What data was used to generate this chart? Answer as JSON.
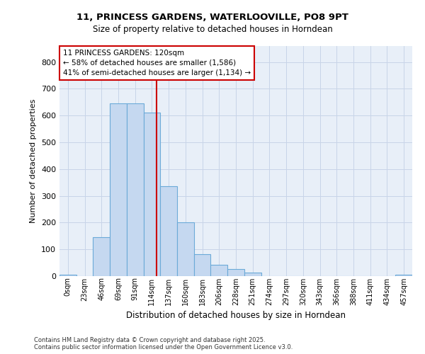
{
  "title_line1": "11, PRINCESS GARDENS, WATERLOOVILLE, PO8 9PT",
  "title_line2": "Size of property relative to detached houses in Horndean",
  "xlabel": "Distribution of detached houses by size in Horndean",
  "ylabel": "Number of detached properties",
  "annotation_line1": "11 PRINCESS GARDENS: 120sqm",
  "annotation_line2": "← 58% of detached houses are smaller (1,586)",
  "annotation_line3": "41% of semi-detached houses are larger (1,134) →",
  "bar_values": [
    5,
    0,
    145,
    645,
    645,
    610,
    335,
    200,
    83,
    43,
    27,
    12,
    0,
    0,
    0,
    0,
    0,
    0,
    0,
    0,
    5
  ],
  "bin_labels": [
    "0sqm",
    "23sqm",
    "46sqm",
    "69sqm",
    "91sqm",
    "114sqm",
    "137sqm",
    "160sqm",
    "183sqm",
    "206sqm",
    "228sqm",
    "251sqm",
    "274sqm",
    "297sqm",
    "320sqm",
    "343sqm",
    "366sqm",
    "388sqm",
    "411sqm",
    "434sqm",
    "457sqm"
  ],
  "bar_color": "#c5d8f0",
  "bar_edge_color": "#6baad8",
  "vline_color": "#cc0000",
  "vline_x": 5.26,
  "ylim": [
    0,
    860
  ],
  "yticks": [
    0,
    100,
    200,
    300,
    400,
    500,
    600,
    700,
    800
  ],
  "grid_color": "#c8d4e8",
  "bg_color": "#e8eff8",
  "annotation_box_color": "#cc0000",
  "footer_line1": "Contains HM Land Registry data © Crown copyright and database right 2025.",
  "footer_line2": "Contains public sector information licensed under the Open Government Licence v3.0."
}
